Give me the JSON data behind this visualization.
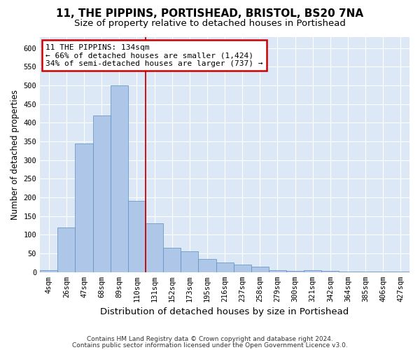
{
  "title": "11, THE PIPPINS, PORTISHEAD, BRISTOL, BS20 7NA",
  "subtitle": "Size of property relative to detached houses in Portishead",
  "xlabel": "Distribution of detached houses by size in Portishead",
  "ylabel": "Number of detached properties",
  "footer_line1": "Contains HM Land Registry data © Crown copyright and database right 2024.",
  "footer_line2": "Contains public sector information licensed under the Open Government Licence v3.0.",
  "bar_labels": [
    "4sqm",
    "26sqm",
    "47sqm",
    "68sqm",
    "89sqm",
    "110sqm",
    "131sqm",
    "152sqm",
    "173sqm",
    "195sqm",
    "216sqm",
    "237sqm",
    "258sqm",
    "279sqm",
    "300sqm",
    "321sqm",
    "342sqm",
    "364sqm",
    "385sqm",
    "406sqm",
    "427sqm"
  ],
  "bar_values": [
    5,
    120,
    345,
    420,
    500,
    190,
    130,
    65,
    55,
    35,
    25,
    20,
    15,
    5,
    3,
    5,
    3,
    2,
    2,
    2,
    1
  ],
  "bar_color": "#aec6e8",
  "bar_edge_color": "#5a8fc0",
  "background_color": "#dce8f5",
  "grid_color": "#ffffff",
  "vline_x": 5.5,
  "vline_color": "#cc0000",
  "annotation_text": "11 THE PIPPINS: 134sqm\n← 66% of detached houses are smaller (1,424)\n34% of semi-detached houses are larger (737) →",
  "annotation_box_color": "#cc0000",
  "ylim": [
    0,
    630
  ],
  "yticks": [
    0,
    50,
    100,
    150,
    200,
    250,
    300,
    350,
    400,
    450,
    500,
    550,
    600
  ],
  "title_fontsize": 11,
  "subtitle_fontsize": 9.5,
  "xlabel_fontsize": 9.5,
  "ylabel_fontsize": 8.5,
  "tick_fontsize": 7.5,
  "footer_fontsize": 6.5
}
